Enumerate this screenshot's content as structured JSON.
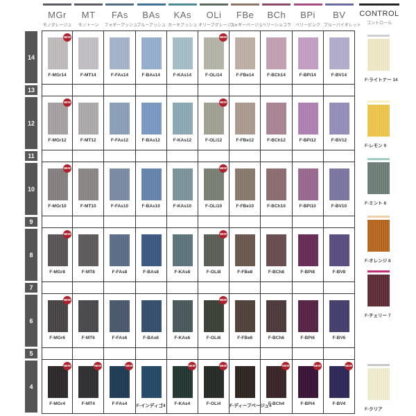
{
  "columns": [
    {
      "code": "MGr",
      "sub": "モノグレージュ",
      "color": "#5a5a5e"
    },
    {
      "code": "MT",
      "sub": "モノトーン",
      "color": "#5a5a5e"
    },
    {
      "code": "FAs",
      "sub": "フォギーアッシュ",
      "color": "#4d6a80"
    },
    {
      "code": "BAs",
      "sub": "ブルーアッシュ",
      "color": "#3e6e92"
    },
    {
      "code": "KAs",
      "sub": "カーキアッシュ",
      "color": "#4b8a94"
    },
    {
      "code": "OLi",
      "sub": "オリーブグレージュ",
      "color": "#5b665c"
    },
    {
      "code": "FBe",
      "sub": "フォギーベージュ",
      "color": "#8a7562"
    },
    {
      "code": "BCh",
      "sub": "ベリーショコラ",
      "color": "#8b4766"
    },
    {
      "code": "BPi",
      "sub": "ベリーピンク",
      "color": "#a24a82"
    },
    {
      "code": "BV",
      "sub": "ブルーバイオレット",
      "color": "#6a6aa2"
    }
  ],
  "control": {
    "code": "CONTROL",
    "sub": "コントロール",
    "color": "#222222",
    "items": [
      {
        "label": "F-ライトナー 14",
        "bar": "#cfcfcf",
        "color": "#f3ecc8"
      },
      {
        "label": "F-レモン 9",
        "bar": "#fbf0c0",
        "color": "#f2c84a"
      },
      {
        "label": "F-ミント 8",
        "bar": "#9fd0c6",
        "color": "#6e7f78"
      },
      {
        "label": "F-オレンジ 8",
        "bar": "#f0cfa8",
        "color": "#b8661c"
      },
      {
        "label": "F-チェリー 7",
        "bar": "#c0307a",
        "color": "#5e2a33"
      },
      {
        "label": "F-クリア",
        "bar": "#c8c8c8",
        "color": "#f5f0d2"
      }
    ]
  },
  "new_badge": "NEW",
  "levels": [
    {
      "level": "14",
      "swatches": true,
      "new": [
        0,
        5
      ],
      "colors": [
        "#c4bfc0",
        "#c6c4c8",
        "#a9b8cf",
        "#9ab3d4",
        "#a8c2cc",
        "#b8b8ac",
        "#c4b4aa",
        "#c7a4b7",
        "#c7a2c8",
        "#b7b1d2"
      ],
      "labels": [
        "F-MGr14",
        "F-MT14",
        "F-FAs14",
        "F-BAs14",
        "F-KAs14",
        "F-OLi14",
        "F-FBe14",
        "F-BCh14",
        "F-BPi14",
        "F-BV14"
      ]
    },
    {
      "level": "13",
      "swatches": false
    },
    {
      "level": "12",
      "swatches": true,
      "new": [
        0,
        5
      ],
      "colors": [
        "#aaa4a5",
        "#b0adae",
        "#8ea3bd",
        "#7c9cc7",
        "#8eadb8",
        "#a4a597",
        "#b09e93",
        "#ad8798",
        "#b285b7",
        "#9891c0"
      ],
      "labels": [
        "F-MGr12",
        "F-MT12",
        "F-FAs12",
        "F-BAs12",
        "F-KAs12",
        "F-OLi12",
        "F-FBe12",
        "F-BCh12",
        "F-BPi12",
        "F-BV12"
      ]
    },
    {
      "level": "11",
      "swatches": false
    },
    {
      "level": "10",
      "swatches": true,
      "new": [
        0,
        5
      ],
      "colors": [
        "#8a8384",
        "#8d8989",
        "#7c8ea7",
        "#6887b2",
        "#7f979f",
        "#7c8276",
        "#8c7c70",
        "#8f7074",
        "#9e6a94",
        "#7e78a6"
      ],
      "labels": [
        "F-MGr10",
        "F-MT10",
        "F-FAs10",
        "F-BAs10",
        "F-KAs10",
        "F-OLi10",
        "F-FBe10",
        "F-BCh10",
        "F-BPi10",
        "F-BV10"
      ]
    },
    {
      "level": "9",
      "swatches": false
    },
    {
      "level": "8",
      "swatches": true,
      "new": [
        0,
        5
      ],
      "colors": [
        "#5c5658",
        "#5f5d5e",
        "#5e708c",
        "#3d5a85",
        "#5f7780",
        "#5c6158",
        "#6d5a50",
        "#6a4f52",
        "#6a2d58",
        "#5b4f83"
      ],
      "labels": [
        "F-MGr8",
        "F-MT8",
        "F-FAs8",
        "F-BAs8",
        "F-KAs8",
        "F-OLi8",
        "F-FBe8",
        "F-BCh8",
        "F-BPi8",
        "F-BV8"
      ]
    },
    {
      "level": "7",
      "swatches": false
    },
    {
      "level": "6",
      "swatches": true,
      "new": [
        0,
        5
      ],
      "colors": [
        "#4a4548",
        "#4b4a4c",
        "#4b5a70",
        "#36506f",
        "#4b5b5e",
        "#3d4238",
        "#52433b",
        "#4f3a3c",
        "#582346",
        "#463f70"
      ],
      "labels": [
        "F-MGr6",
        "F-MT6",
        "F-FAs6",
        "F-BAs6",
        "F-KAs6",
        "F-OLi6",
        "F-FBe6",
        "F-BCh6",
        "F-BPi6",
        "F-BV6"
      ]
    },
    {
      "level": "5",
      "swatches": false
    },
    {
      "level": "4",
      "swatches": true,
      "new": [
        0,
        1,
        2,
        4,
        5,
        7,
        8,
        9
      ],
      "colors": [
        "#2e2a2c",
        "#302f31",
        "#1f3c55",
        "#254a6a",
        "#233733",
        "#252b26",
        "#2e2520",
        "#3a2428",
        "#3a1338",
        "#2e2858"
      ],
      "labels": [
        "F-MGr4",
        "F-MT4",
        "F-FAs4",
        "F-インディゴ4",
        "F-KAs4",
        "F-OLi4",
        "F-ディープベージュ4",
        "F-BCh4",
        "F-BPi4",
        "F-BV4"
      ]
    }
  ]
}
